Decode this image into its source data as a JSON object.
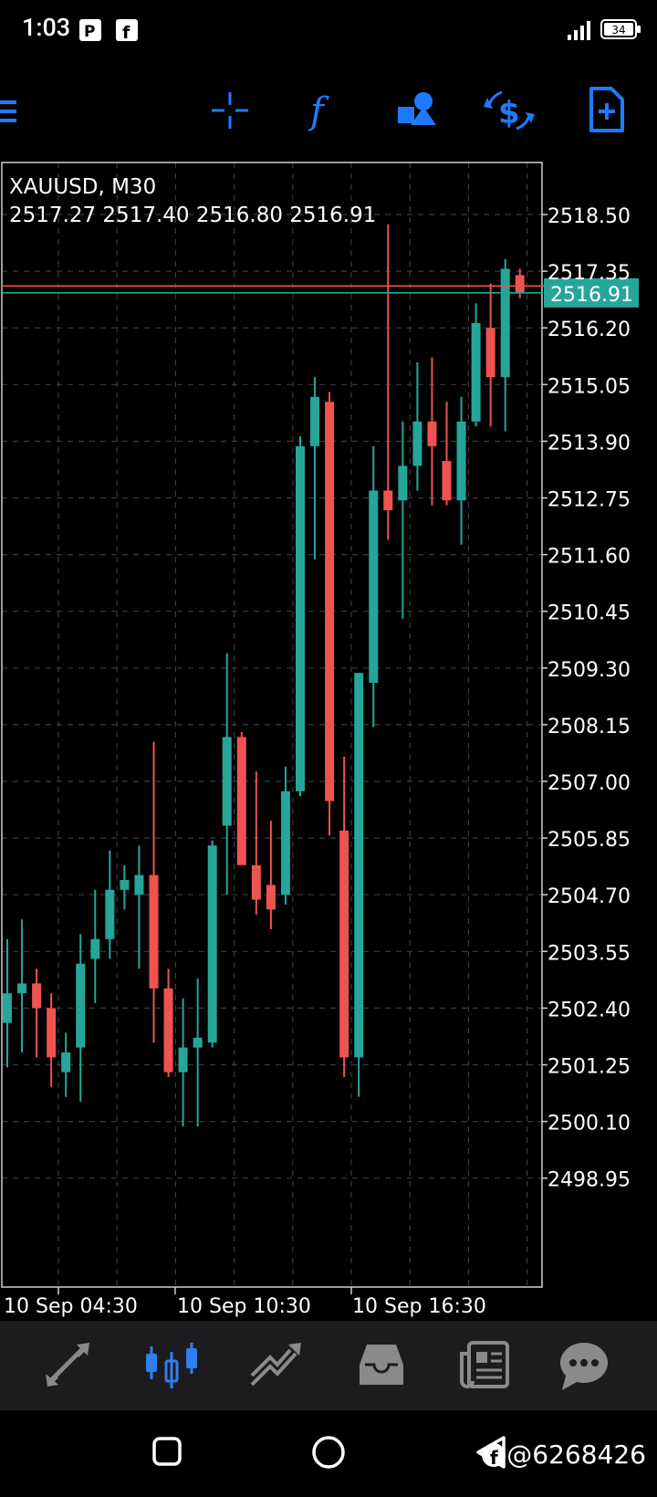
{
  "status": {
    "time": "1:03",
    "battery": "34"
  },
  "toolbar": {
    "items": [
      {
        "name": "menu-icon"
      },
      {
        "name": "crosshair-icon"
      },
      {
        "name": "function-icon"
      },
      {
        "name": "objects-icon"
      },
      {
        "name": "trade-icon"
      },
      {
        "name": "new-order-icon"
      }
    ]
  },
  "chart_data": {
    "type": "candlestick",
    "symbol_timeframe": "XAUUSD, M30",
    "ohlc_header": "2517.27 2517.40 2516.80 2516.91",
    "y_ticks": [
      "2518.50",
      "2517.35",
      "2516.20",
      "2515.05",
      "2513.90",
      "2512.75",
      "2511.60",
      "2510.45",
      "2509.30",
      "2508.15",
      "2507.00",
      "2505.85",
      "2504.70",
      "2503.55",
      "2502.40",
      "2501.25",
      "2500.10",
      "2498.95"
    ],
    "x_ticks": [
      "10 Sep 04:30",
      "10 Sep 10:30",
      "10 Sep 16:30"
    ],
    "current_price": "2516.91",
    "bid": 2516.91,
    "ask": 2517.05,
    "colors": {
      "up": "#26a69a",
      "down": "#ef5350",
      "grid": "#3a3a4a",
      "bid_line": "#26a69a",
      "ask_line": "#ef5350"
    },
    "candles": [
      {
        "o": 2502.1,
        "h": 2503.8,
        "l": 2501.2,
        "c": 2502.7
      },
      {
        "o": 2502.7,
        "h": 2504.2,
        "l": 2501.5,
        "c": 2502.9
      },
      {
        "o": 2502.9,
        "h": 2503.2,
        "l": 2501.4,
        "c": 2502.4
      },
      {
        "o": 2502.4,
        "h": 2502.7,
        "l": 2500.8,
        "c": 2501.4
      },
      {
        "o": 2501.1,
        "h": 2501.9,
        "l": 2500.6,
        "c": 2501.5
      },
      {
        "o": 2501.6,
        "h": 2503.9,
        "l": 2500.5,
        "c": 2503.3
      },
      {
        "o": 2503.4,
        "h": 2504.8,
        "l": 2502.5,
        "c": 2503.8
      },
      {
        "o": 2503.8,
        "h": 2505.6,
        "l": 2503.4,
        "c": 2504.8
      },
      {
        "o": 2504.8,
        "h": 2505.3,
        "l": 2504.4,
        "c": 2505.0
      },
      {
        "o": 2504.7,
        "h": 2505.7,
        "l": 2503.2,
        "c": 2505.1
      },
      {
        "o": 2505.1,
        "h": 2507.8,
        "l": 2501.7,
        "c": 2502.8
      },
      {
        "o": 2502.8,
        "h": 2503.2,
        "l": 2501.0,
        "c": 2501.1
      },
      {
        "o": 2501.1,
        "h": 2502.6,
        "l": 2500.0,
        "c": 2501.6
      },
      {
        "o": 2501.6,
        "h": 2503.0,
        "l": 2500.0,
        "c": 2501.8
      },
      {
        "o": 2501.7,
        "h": 2505.8,
        "l": 2501.6,
        "c": 2505.7
      },
      {
        "o": 2506.1,
        "h": 2509.6,
        "l": 2504.7,
        "c": 2507.9
      },
      {
        "o": 2507.9,
        "h": 2508.0,
        "l": 2505.4,
        "c": 2505.3
      },
      {
        "o": 2505.3,
        "h": 2507.2,
        "l": 2504.3,
        "c": 2504.6
      },
      {
        "o": 2504.9,
        "h": 2506.2,
        "l": 2504.0,
        "c": 2504.4
      },
      {
        "o": 2504.7,
        "h": 2507.3,
        "l": 2504.5,
        "c": 2506.8
      },
      {
        "o": 2506.8,
        "h": 2514.0,
        "l": 2506.7,
        "c": 2513.8
      },
      {
        "o": 2513.8,
        "h": 2515.2,
        "l": 2511.5,
        "c": 2514.8
      },
      {
        "o": 2514.7,
        "h": 2514.9,
        "l": 2505.9,
        "c": 2506.6
      },
      {
        "o": 2506.0,
        "h": 2507.5,
        "l": 2501.0,
        "c": 2501.4
      },
      {
        "o": 2501.4,
        "h": 2509.2,
        "l": 2500.6,
        "c": 2509.2
      },
      {
        "o": 2509.0,
        "h": 2513.8,
        "l": 2508.1,
        "c": 2512.9
      },
      {
        "o": 2512.9,
        "h": 2518.3,
        "l": 2511.9,
        "c": 2512.5
      },
      {
        "o": 2512.7,
        "h": 2514.3,
        "l": 2510.3,
        "c": 2513.4
      },
      {
        "o": 2513.4,
        "h": 2515.5,
        "l": 2512.9,
        "c": 2514.3
      },
      {
        "o": 2514.3,
        "h": 2515.6,
        "l": 2512.6,
        "c": 2513.8
      },
      {
        "o": 2513.5,
        "h": 2514.7,
        "l": 2512.6,
        "c": 2512.7
      },
      {
        "o": 2512.7,
        "h": 2514.8,
        "l": 2511.8,
        "c": 2514.3
      },
      {
        "o": 2514.3,
        "h": 2516.7,
        "l": 2514.2,
        "c": 2516.3
      },
      {
        "o": 2516.2,
        "h": 2517.1,
        "l": 2514.2,
        "c": 2515.2
      },
      {
        "o": 2515.2,
        "h": 2517.6,
        "l": 2514.1,
        "c": 2517.4
      },
      {
        "o": 2517.27,
        "h": 2517.4,
        "l": 2516.8,
        "c": 2516.91
      }
    ]
  },
  "bottom_nav": {
    "items": [
      {
        "name": "quotes-tab-icon",
        "active": false
      },
      {
        "name": "chart-tab-icon",
        "active": true
      },
      {
        "name": "trade-tab-icon",
        "active": false
      },
      {
        "name": "history-tab-icon",
        "active": false
      },
      {
        "name": "news-tab-icon",
        "active": false
      },
      {
        "name": "messages-tab-icon",
        "active": false
      }
    ]
  },
  "watermark": "@6268426"
}
